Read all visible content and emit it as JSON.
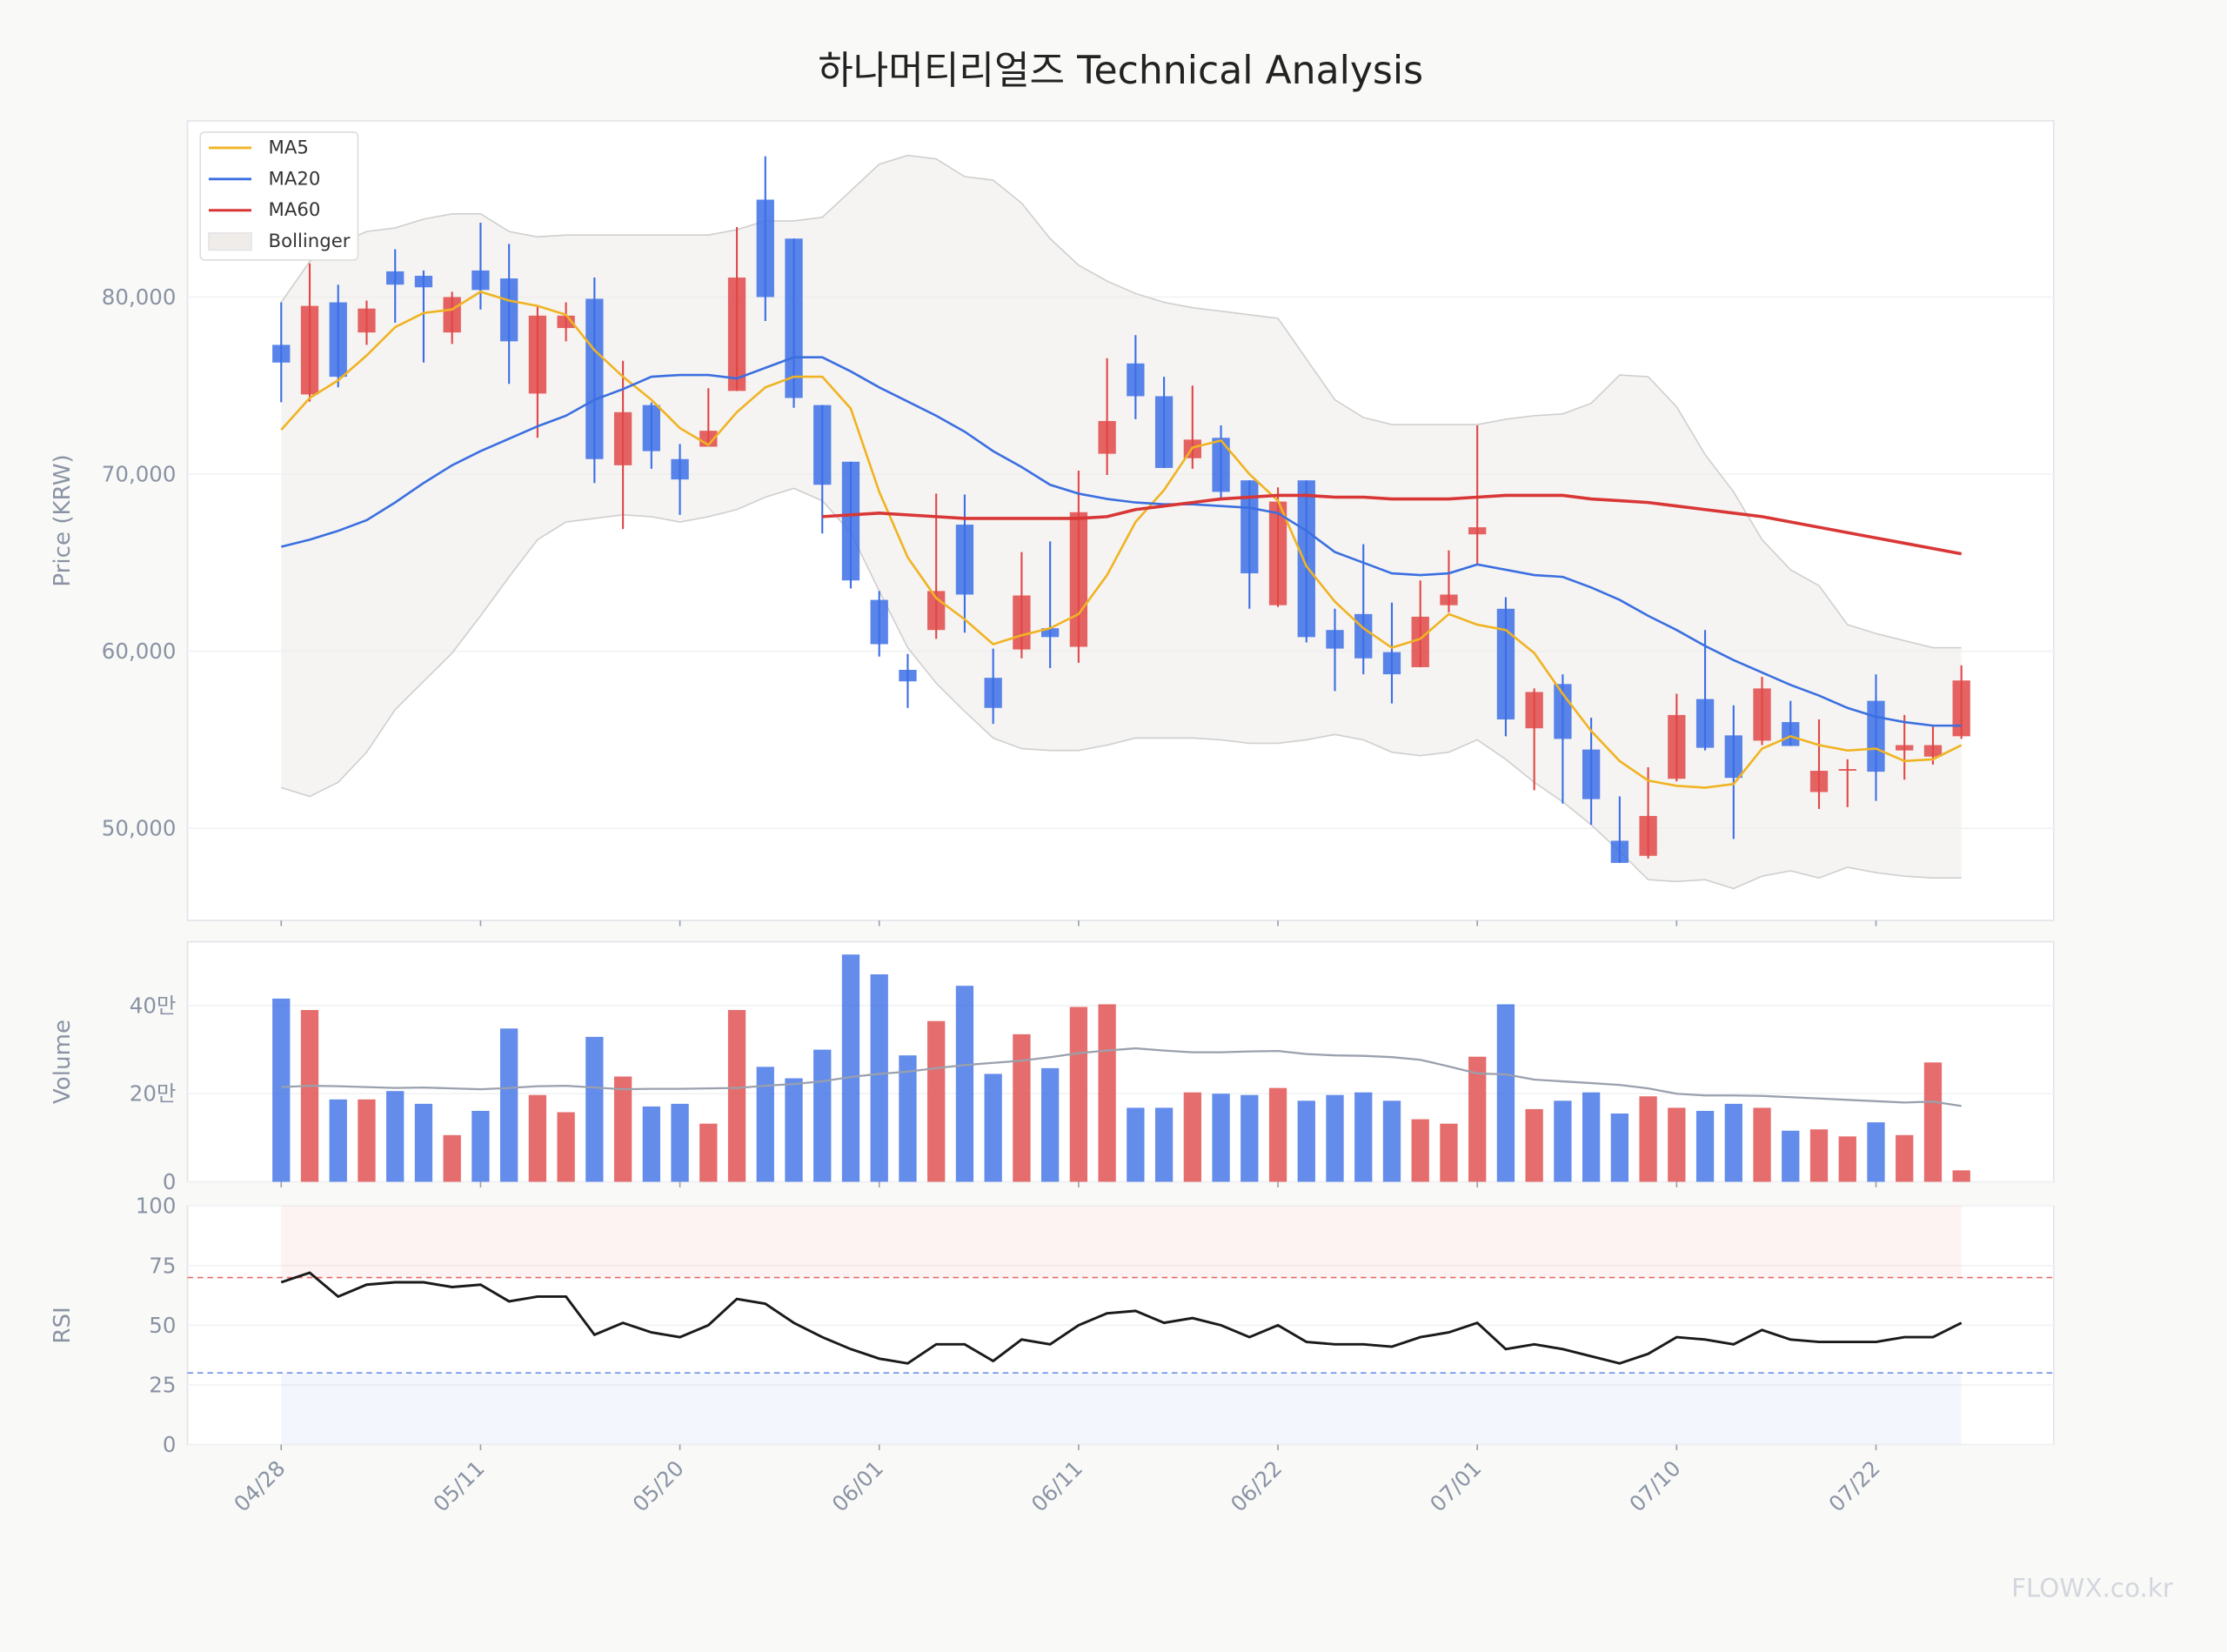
{
  "chart_data": {
    "type": "candlestick",
    "title": "하나머티리얼즈 Technical Analysis",
    "ylabel": "Price (KRW)",
    "categories": [
      "04/28",
      null,
      null,
      null,
      null,
      null,
      null,
      "05/11",
      null,
      null,
      null,
      null,
      null,
      null,
      "05/20",
      null,
      null,
      null,
      null,
      null,
      null,
      "06/01",
      null,
      null,
      null,
      null,
      null,
      null,
      "06/11",
      null,
      null,
      null,
      null,
      null,
      null,
      "06/22",
      null,
      null,
      null,
      null,
      null,
      null,
      "07/01",
      null,
      null,
      null,
      null,
      null,
      null,
      "07/10",
      null,
      null,
      null,
      null,
      null,
      null,
      "07/22",
      null,
      null,
      null
    ],
    "ylim": [
      44800,
      89950
    ],
    "yticks": [
      {
        "value": 50000,
        "label": "50,000"
      },
      {
        "value": 60000,
        "label": "60,000"
      },
      {
        "value": 70000,
        "label": "70,000"
      },
      {
        "value": 80000,
        "label": "80,000"
      }
    ],
    "grid": true,
    "legend": "upper left",
    "up_color": "#e04848",
    "down_color": "#3c6fe6",
    "open": [
      77300,
      74500,
      79700,
      78000,
      81450,
      81200,
      78000,
      81500,
      81050,
      74550,
      78250,
      79900,
      70500,
      73900,
      70850,
      71550,
      74700,
      85500,
      83300,
      73900,
      70700,
      62900,
      58950,
      61200,
      67150,
      58500,
      60100,
      61300,
      60250,
      71150,
      76250,
      74400,
      70900,
      72050,
      69650,
      62600,
      69650,
      61200,
      62100,
      59950,
      59100,
      62600,
      66600,
      62400,
      55650,
      58150,
      54450,
      49300,
      48450,
      52800,
      57300,
      55250,
      54950,
      56000,
      52050,
      53300,
      57200,
      54400,
      54050,
      55200
    ],
    "high": [
      79700,
      81900,
      80700,
      79800,
      82700,
      81500,
      80300,
      84200,
      83000,
      79500,
      79700,
      81100,
      76400,
      74050,
      71700,
      74850,
      83950,
      87950,
      83300,
      73900,
      70700,
      63400,
      59850,
      68900,
      68850,
      60150,
      65600,
      66200,
      70200,
      76550,
      77850,
      75500,
      75000,
      72750,
      69650,
      69250,
      69650,
      62400,
      66050,
      62750,
      64000,
      65700,
      72750,
      63050,
      57900,
      58700,
      56250,
      51800,
      53450,
      57600,
      61200,
      56950,
      58550,
      57200,
      56150,
      53900,
      58700,
      56400,
      55850,
      59200
    ],
    "low": [
      74060,
      74100,
      74900,
      77300,
      78550,
      76300,
      77350,
      79300,
      75100,
      72050,
      77500,
      69500,
      66900,
      70300,
      67700,
      71700,
      74700,
      78650,
      73750,
      66650,
      63550,
      59700,
      56800,
      60700,
      61050,
      55900,
      59600,
      59050,
      59350,
      69950,
      73100,
      70350,
      70300,
      68650,
      62400,
      62500,
      60500,
      57750,
      58700,
      57050,
      59100,
      62200,
      64900,
      55200,
      52150,
      51400,
      50200,
      48050,
      48300,
      52650,
      54400,
      49400,
      54700,
      54650,
      51100,
      51200,
      51550,
      52750,
      53600,
      55050
    ],
    "close": [
      76300,
      79500,
      75500,
      79350,
      80700,
      80550,
      80000,
      80400,
      77500,
      78950,
      78950,
      70850,
      73500,
      71300,
      69700,
      72450,
      81100,
      80000,
      74300,
      69400,
      64000,
      60400,
      58300,
      63400,
      63200,
      56800,
      63150,
      60800,
      67850,
      73000,
      74400,
      70350,
      71950,
      69000,
      64400,
      68450,
      60800,
      60150,
      59600,
      58700,
      61950,
      63200,
      67000,
      56150,
      57700,
      55050,
      51650,
      48050,
      50700,
      56400,
      54550,
      52850,
      57900,
      54650,
      53250,
      53350,
      53200,
      54700,
      54700,
      58350
    ],
    "series": [
      {
        "name": "MA5",
        "color": "#f0b323",
        "values": [
          72500,
          74300,
          75300,
          76700,
          78300,
          79100,
          79300,
          80300,
          79800,
          79500,
          79000,
          77000,
          75500,
          74200,
          72600,
          71650,
          73500,
          74900,
          75500,
          75500,
          73700,
          69000,
          65300,
          63000,
          61800,
          60400,
          60900,
          61300,
          62100,
          64300,
          67300,
          69100,
          71500,
          71900,
          70000,
          68500,
          64800,
          62800,
          61300,
          60200,
          60700,
          62100,
          61500,
          61200,
          59900,
          57600,
          55500,
          53800,
          52700,
          52400,
          52300,
          52500,
          54500,
          55200,
          54700,
          54400,
          54500,
          53800,
          53900,
          54700
        ]
      },
      {
        "name": "MA20",
        "color": "#3b6fe0",
        "values": [
          65900,
          66300,
          66800,
          67400,
          68400,
          69500,
          70500,
          71300,
          72000,
          72700,
          73300,
          74200,
          74800,
          75500,
          75600,
          75600,
          75400,
          76000,
          76600,
          76600,
          75800,
          74900,
          74100,
          73300,
          72400,
          71300,
          70400,
          69400,
          68900,
          68600,
          68400,
          68300,
          68300,
          68200,
          68100,
          67800,
          66800,
          65600,
          65000,
          64400,
          64300,
          64400,
          64900,
          64600,
          64300,
          64200,
          63600,
          62900,
          62000,
          61200,
          60300,
          59500,
          58800,
          58100,
          57500,
          56800,
          56300,
          56000,
          55800,
          55800
        ]
      },
      {
        "name": "MA60",
        "color": "#d93636",
        "values": [
          null,
          null,
          null,
          null,
          null,
          null,
          null,
          null,
          null,
          null,
          null,
          null,
          null,
          null,
          null,
          null,
          null,
          null,
          null,
          67600,
          67700,
          67800,
          67700,
          67600,
          67500,
          67500,
          67500,
          67500,
          67500,
          67600,
          68000,
          68200,
          68400,
          68600,
          68700,
          68800,
          68800,
          68700,
          68700,
          68600,
          68600,
          68600,
          68700,
          68800,
          68800,
          68800,
          68600,
          68500,
          68400,
          68200,
          68000,
          67800,
          67600,
          67300,
          67000,
          66700,
          66400,
          66100,
          65800,
          65500
        ]
      }
    ],
    "bands": {
      "name": "Bollinger",
      "color": "#efecea",
      "edge_color": "#cfcfcf",
      "upper": [
        79700,
        82000,
        83000,
        83700,
        83900,
        84400,
        84700,
        84700,
        83700,
        83400,
        83500,
        83500,
        83500,
        83500,
        83500,
        83500,
        83800,
        84300,
        84300,
        84500,
        86000,
        87500,
        88000,
        87800,
        86800,
        86600,
        85300,
        83300,
        81800,
        80900,
        80200,
        79700,
        79400,
        79200,
        79000,
        78800,
        76500,
        74200,
        73200,
        72800,
        72800,
        72800,
        72800,
        73100,
        73300,
        73400,
        74000,
        75600,
        75500,
        73800,
        71100,
        69000,
        66300,
        64600,
        63700,
        61500,
        61000,
        60600,
        60200,
        60200
      ],
      "lower": [
        52300,
        51800,
        52600,
        54300,
        56700,
        58300,
        59900,
        62000,
        64200,
        66300,
        67300,
        67500,
        67700,
        67600,
        67300,
        67600,
        68000,
        68700,
        69200,
        68500,
        66700,
        63400,
        60200,
        58200,
        56600,
        55100,
        54500,
        54400,
        54400,
        54700,
        55100,
        55100,
        55100,
        55000,
        54800,
        54800,
        55000,
        55300,
        55000,
        54300,
        54100,
        54300,
        55000,
        53900,
        52600,
        51500,
        50200,
        48700,
        47100,
        47000,
        47100,
        46600,
        47300,
        47600,
        47200,
        47800,
        47500,
        47300,
        47200,
        47200
      ]
    },
    "volume": {
      "ylabel": "Volume",
      "ylim": [
        0,
        545000
      ],
      "yticks": [
        0,
        {
          "value": 200000,
          "label": "20만"
        },
        {
          "value": 400000,
          "label": "40만"
        }
      ],
      "values": [
        416000,
        390000,
        187000,
        187000,
        206000,
        177000,
        106000,
        161000,
        348000,
        197000,
        158000,
        329000,
        239000,
        171000,
        177000,
        132000,
        390000,
        261000,
        235000,
        300000,
        516000,
        471000,
        287000,
        365000,
        445000,
        245000,
        335000,
        258000,
        397000,
        403000,
        168000,
        168000,
        203000,
        200000,
        197000,
        213000,
        184000,
        197000,
        203000,
        184000,
        142000,
        132000,
        284000,
        403000,
        165000,
        184000,
        203000,
        155000,
        194000,
        168000,
        161000,
        177000,
        168000,
        116000,
        119000,
        103000,
        135000,
        106000,
        271000,
        26000
      ],
      "ma_color": "#9aa0ad",
      "ma": [
        215000,
        218000,
        217000,
        215000,
        213000,
        214000,
        212000,
        210000,
        213000,
        217000,
        218000,
        214000,
        210000,
        211000,
        211000,
        212000,
        213000,
        218000,
        222000,
        228000,
        238000,
        245000,
        250000,
        258000,
        265000,
        270000,
        275000,
        283000,
        292000,
        298000,
        303000,
        298000,
        294000,
        294000,
        296000,
        297000,
        290000,
        287000,
        286000,
        283000,
        277000,
        262000,
        246000,
        244000,
        232000,
        228000,
        224000,
        220000,
        212000,
        200000,
        196000,
        196000,
        195000,
        192000,
        189000,
        186000,
        183000,
        180000,
        182000,
        172000
      ]
    },
    "rsi": {
      "ylabel": "RSI",
      "ylim": [
        0,
        100
      ],
      "yticks": [
        0,
        25,
        50,
        75,
        100
      ],
      "color": "#1a1a1a",
      "overbought": 70,
      "oversold": 30,
      "overbought_color": "#e86a6a",
      "oversold_color": "#6f8fe8",
      "values": [
        68,
        72,
        62,
        67,
        68,
        68,
        66,
        67,
        60,
        62,
        62,
        46,
        51,
        47,
        45,
        50,
        61,
        59,
        51,
        45,
        40,
        36,
        34,
        42,
        42,
        35,
        44,
        42,
        50,
        55,
        56,
        51,
        53,
        50,
        45,
        50,
        43,
        42,
        42,
        41,
        45,
        47,
        51,
        40,
        42,
        40,
        37,
        34,
        38,
        45,
        44,
        42,
        48,
        44,
        43,
        43,
        43,
        45,
        45,
        51
      ]
    }
  },
  "watermark": "FLOWX.co.kr"
}
